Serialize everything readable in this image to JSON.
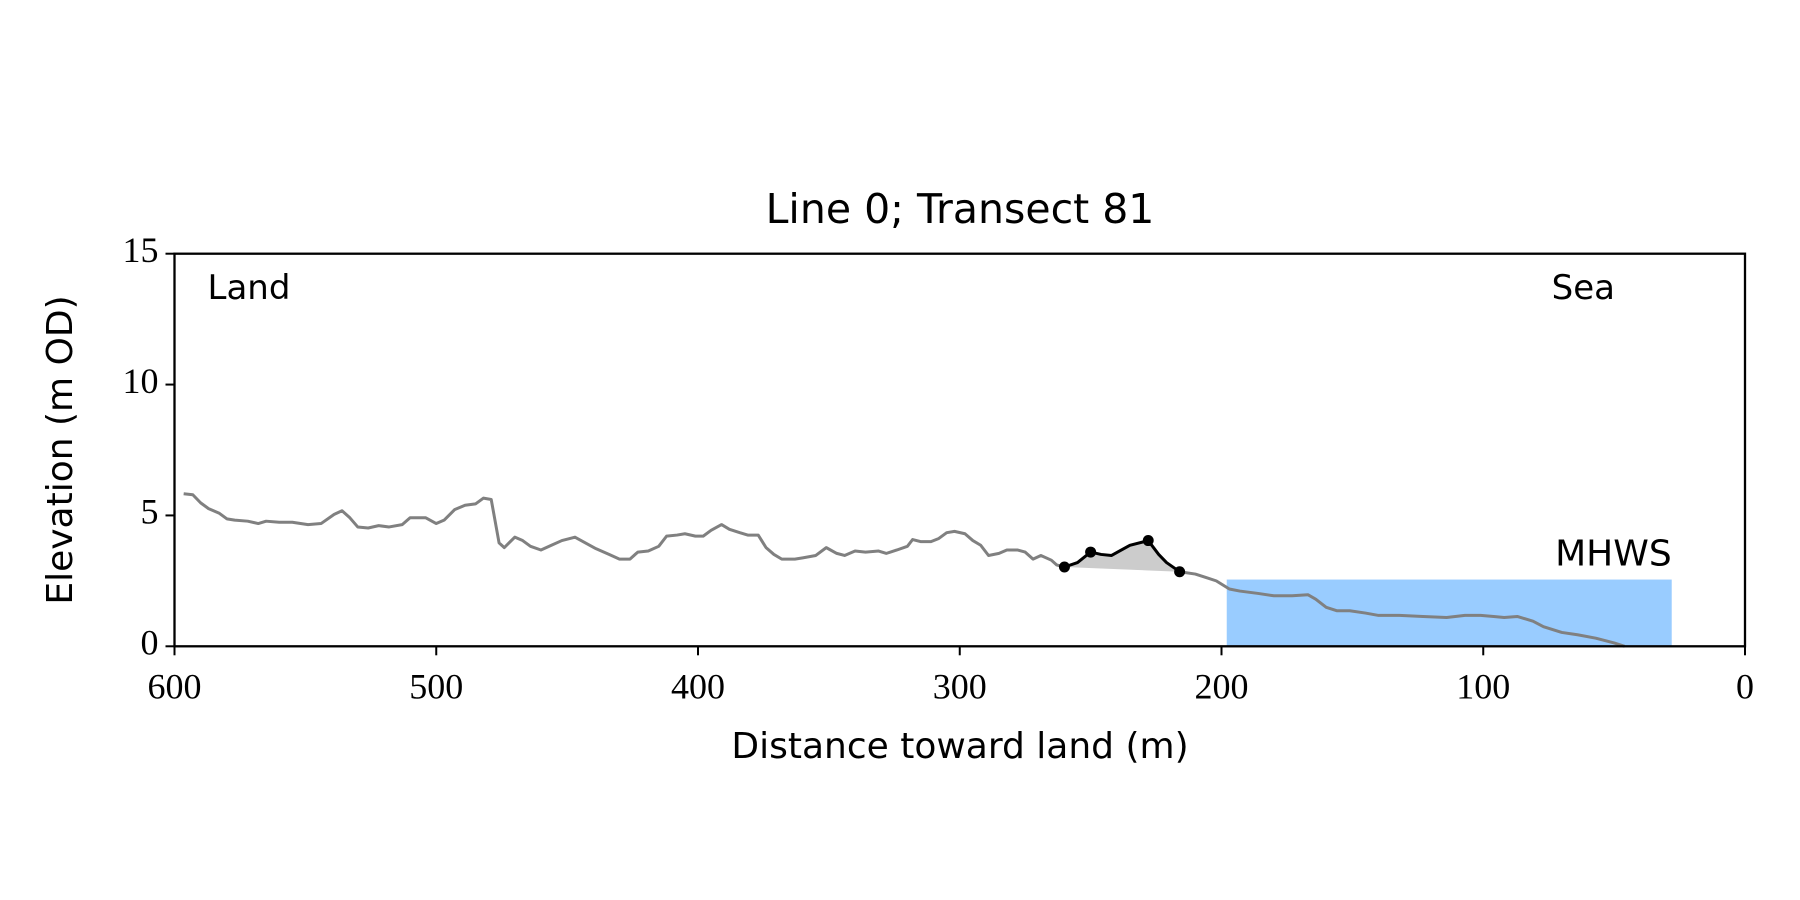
{
  "chart_data": {
    "type": "line",
    "title": "Line 0; Transect 81",
    "x_label": "Distance toward land (m)",
    "y_label": "Elevation (m OD)",
    "xlim": [
      600,
      0
    ],
    "ylim": [
      0,
      15
    ],
    "xticks": [
      600,
      500,
      400,
      300,
      200,
      100,
      0
    ],
    "yticks": [
      0,
      5,
      10,
      15
    ],
    "annotations": [
      {
        "text": "Land"
      },
      {
        "text": "Sea"
      }
    ],
    "mhws": {
      "label": "MHWS",
      "level": 2.55,
      "xrange": [
        198,
        28
      ],
      "color": "#99ccff",
      "label_color": "#6a9cc9"
    },
    "series": [
      {
        "color": "#808080",
        "x": [
          596.5,
          593,
          590,
          587,
          583,
          580,
          577,
          572,
          568,
          565,
          560,
          555,
          549,
          544,
          539,
          536,
          533,
          530,
          526,
          522,
          518,
          513,
          510,
          507,
          504,
          500,
          497,
          493,
          489,
          485,
          482,
          479,
          476,
          474,
          470,
          467,
          464,
          460,
          456,
          452,
          447,
          443,
          439,
          434,
          430,
          426,
          423,
          419,
          415,
          412,
          408,
          405,
          401,
          398,
          395,
          391,
          388,
          384,
          381,
          377,
          374,
          371,
          368,
          363,
          360,
          355,
          351,
          347,
          344,
          340,
          336,
          331,
          328,
          324,
          320,
          318,
          315,
          311,
          308,
          305,
          302,
          298,
          295,
          292,
          289,
          285,
          282,
          278,
          275,
          272,
          269,
          265,
          263,
          260,
          null,
          216,
          210,
          206,
          202,
          197,
          193,
          186,
          180,
          173,
          167,
          164,
          160,
          156,
          151,
          145,
          140,
          132,
          123,
          114,
          107,
          101,
          96,
          92,
          87,
          81,
          77,
          70,
          64,
          57,
          50,
          46
        ],
        "values": [
          5.83,
          5.79,
          5.48,
          5.26,
          5.09,
          4.87,
          4.82,
          4.78,
          4.69,
          4.78,
          4.74,
          4.74,
          4.65,
          4.69,
          5.04,
          5.18,
          4.91,
          4.56,
          4.52,
          4.61,
          4.56,
          4.65,
          4.91,
          4.91,
          4.91,
          4.69,
          4.82,
          5.22,
          5.39,
          5.44,
          5.66,
          5.61,
          3.95,
          3.77,
          4.17,
          4.04,
          3.82,
          3.68,
          3.86,
          4.04,
          4.17,
          3.95,
          3.73,
          3.51,
          3.33,
          3.33,
          3.6,
          3.64,
          3.82,
          4.21,
          4.25,
          4.3,
          4.21,
          4.21,
          4.43,
          4.65,
          4.47,
          4.34,
          4.25,
          4.25,
          3.77,
          3.51,
          3.33,
          3.33,
          3.38,
          3.47,
          3.77,
          3.55,
          3.47,
          3.64,
          3.6,
          3.64,
          3.55,
          3.68,
          3.82,
          4.08,
          4,
          4,
          4.12,
          4.34,
          4.39,
          4.3,
          4.04,
          3.86,
          3.47,
          3.55,
          3.68,
          3.68,
          3.6,
          3.33,
          3.47,
          3.29,
          3.11,
          3.03,
          null,
          2.85,
          2.76,
          2.63,
          2.5,
          2.19,
          2.11,
          2.02,
          1.93,
          1.93,
          1.97,
          1.8,
          1.49,
          1.36,
          1.36,
          1.27,
          1.18,
          1.18,
          1.14,
          1.1,
          1.18,
          1.18,
          1.14,
          1.1,
          1.14,
          0.96,
          0.75,
          0.53,
          0.44,
          0.31,
          0.13,
          0
        ]
      },
      {
        "color": "#000000",
        "markers": [
          0,
          2,
          7,
          10
        ],
        "fill": "#cccccc",
        "x": [
          260,
          255,
          250,
          246,
          242,
          239,
          235,
          228,
          224,
          221,
          216
        ],
        "values": [
          3.03,
          3.2,
          3.6,
          3.51,
          3.47,
          3.64,
          3.86,
          4.04,
          3.51,
          3.2,
          2.85
        ]
      }
    ]
  }
}
